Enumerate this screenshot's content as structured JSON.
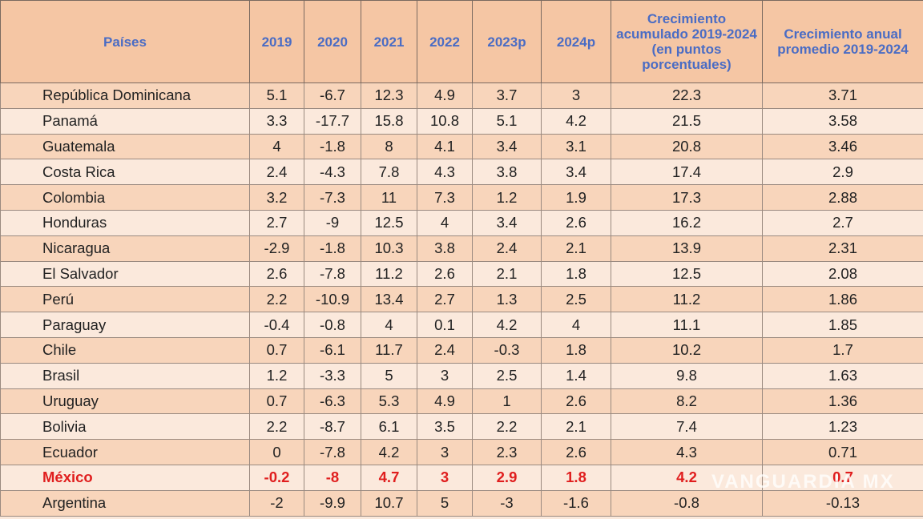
{
  "table": {
    "header": [
      "Países",
      "2019",
      "2020",
      "2021",
      "2022",
      "2023p",
      "2024p",
      "Crecimiento acumulado 2019-2024 (en puntos porcentuales)",
      "Crecimiento anual promedio 2019-2024"
    ],
    "header_color": "#4a6cc4",
    "rows": [
      {
        "country": "República Dominicana",
        "values": [
          5.1,
          -6.7,
          12.3,
          4.9,
          3.7,
          3,
          22.3,
          3.71
        ]
      },
      {
        "country": "Panamá",
        "values": [
          3.3,
          -17.7,
          15.8,
          10.8,
          5.1,
          4.2,
          21.5,
          3.58
        ]
      },
      {
        "country": "Guatemala",
        "values": [
          4,
          -1.8,
          8,
          4.1,
          3.4,
          3.1,
          20.8,
          3.46
        ]
      },
      {
        "country": "Costa Rica",
        "values": [
          2.4,
          -4.3,
          7.8,
          4.3,
          3.8,
          3.4,
          17.4,
          2.9
        ]
      },
      {
        "country": "Colombia",
        "values": [
          3.2,
          -7.3,
          11,
          7.3,
          1.2,
          1.9,
          17.3,
          2.88
        ]
      },
      {
        "country": "Honduras",
        "values": [
          2.7,
          -9,
          12.5,
          4,
          3.4,
          2.6,
          16.2,
          2.7
        ]
      },
      {
        "country": "Nicaragua",
        "values": [
          -2.9,
          -1.8,
          10.3,
          3.8,
          2.4,
          2.1,
          13.9,
          2.31
        ]
      },
      {
        "country": "El Salvador",
        "values": [
          2.6,
          -7.8,
          11.2,
          2.6,
          2.1,
          1.8,
          12.5,
          2.08
        ]
      },
      {
        "country": "Perú",
        "values": [
          2.2,
          -10.9,
          13.4,
          2.7,
          1.3,
          2.5,
          11.2,
          1.86
        ]
      },
      {
        "country": "Paraguay",
        "values": [
          -0.4,
          -0.8,
          4,
          0.1,
          4.2,
          4,
          11.1,
          1.85
        ]
      },
      {
        "country": "Chile",
        "values": [
          0.7,
          -6.1,
          11.7,
          2.4,
          -0.3,
          1.8,
          10.2,
          1.7
        ]
      },
      {
        "country": "Brasil",
        "values": [
          1.2,
          -3.3,
          5,
          3,
          2.5,
          1.4,
          9.8,
          1.63
        ]
      },
      {
        "country": "Uruguay",
        "values": [
          0.7,
          -6.3,
          5.3,
          4.9,
          1,
          2.6,
          8.2,
          1.36
        ]
      },
      {
        "country": "Bolivia",
        "values": [
          2.2,
          -8.7,
          6.1,
          3.5,
          2.2,
          2.1,
          7.4,
          1.23
        ]
      },
      {
        "country": "Ecuador",
        "values": [
          0,
          -7.8,
          4.2,
          3,
          2.3,
          2.6,
          4.3,
          0.71
        ]
      },
      {
        "country": "México",
        "values": [
          -0.2,
          -8,
          4.7,
          3,
          2.9,
          1.8,
          4.2,
          0.7
        ],
        "color": "#e01e1e"
      },
      {
        "country": "Argentina",
        "values": [
          -2,
          -9.9,
          10.7,
          5,
          -3,
          -1.6,
          -0.8,
          -0.13
        ]
      }
    ]
  },
  "watermark": "VANGUARDIA MX"
}
